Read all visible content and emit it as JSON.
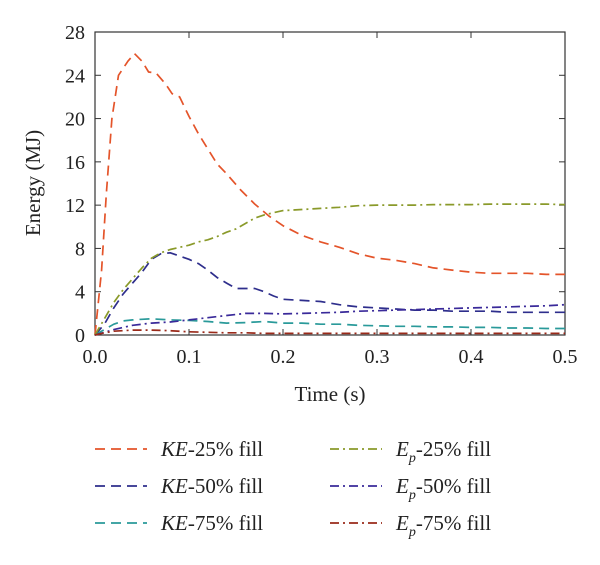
{
  "chart_data": {
    "type": "line",
    "title": "",
    "xlabel": "Time (s)",
    "ylabel": "Energy (MJ)",
    "xlim": [
      0.0,
      0.5
    ],
    "ylim": [
      0,
      28
    ],
    "x_ticks": [
      "0.0",
      "0.1",
      "0.2",
      "0.3",
      "0.4",
      "0.5"
    ],
    "y_ticks": [
      "0",
      "4",
      "8",
      "12",
      "16",
      "20",
      "24",
      "28"
    ],
    "grid": false,
    "legend_position": "bottom",
    "series": [
      {
        "name": "KE-25% fill",
        "legend_italic": "KE",
        "legend_rest": "-25% fill",
        "color": "#E4542A",
        "style": "dash",
        "points": [
          [
            0,
            0
          ],
          [
            0.007,
            6
          ],
          [
            0.012,
            13
          ],
          [
            0.018,
            20
          ],
          [
            0.025,
            24
          ],
          [
            0.035,
            25.3
          ],
          [
            0.042,
            26
          ],
          [
            0.05,
            25.3
          ],
          [
            0.057,
            24.3
          ],
          [
            0.065,
            24.2
          ],
          [
            0.075,
            23.2
          ],
          [
            0.082,
            22.3
          ],
          [
            0.09,
            22
          ],
          [
            0.1,
            20.2
          ],
          [
            0.11,
            18.6
          ],
          [
            0.12,
            17.2
          ],
          [
            0.13,
            15.8
          ],
          [
            0.14,
            14.9
          ],
          [
            0.155,
            13.4
          ],
          [
            0.17,
            12.1
          ],
          [
            0.185,
            11
          ],
          [
            0.2,
            10.1
          ],
          [
            0.22,
            9.2
          ],
          [
            0.24,
            8.6
          ],
          [
            0.26,
            8.1
          ],
          [
            0.28,
            7.5
          ],
          [
            0.3,
            7.1
          ],
          [
            0.32,
            6.9
          ],
          [
            0.34,
            6.6
          ],
          [
            0.36,
            6.2
          ],
          [
            0.38,
            6.0
          ],
          [
            0.4,
            5.8
          ],
          [
            0.42,
            5.7
          ],
          [
            0.44,
            5.7
          ],
          [
            0.46,
            5.7
          ],
          [
            0.48,
            5.6
          ],
          [
            0.5,
            5.6
          ]
        ]
      },
      {
        "name": "KE-50% fill",
        "legend_italic": "KE",
        "legend_rest": "-50% fill",
        "color": "#2E2E8C",
        "style": "dash",
        "points": [
          [
            0,
            0
          ],
          [
            0.01,
            1.0
          ],
          [
            0.02,
            2.5
          ],
          [
            0.03,
            3.8
          ],
          [
            0.04,
            4.8
          ],
          [
            0.05,
            5.8
          ],
          [
            0.06,
            7.0
          ],
          [
            0.07,
            7.5
          ],
          [
            0.08,
            7.6
          ],
          [
            0.09,
            7.3
          ],
          [
            0.1,
            7.0
          ],
          [
            0.11,
            6.6
          ],
          [
            0.12,
            6.0
          ],
          [
            0.13,
            5.3
          ],
          [
            0.14,
            4.8
          ],
          [
            0.15,
            4.3
          ],
          [
            0.16,
            4.3
          ],
          [
            0.17,
            4.3
          ],
          [
            0.18,
            4.0
          ],
          [
            0.19,
            3.6
          ],
          [
            0.2,
            3.3
          ],
          [
            0.22,
            3.2
          ],
          [
            0.24,
            3.1
          ],
          [
            0.26,
            2.8
          ],
          [
            0.28,
            2.6
          ],
          [
            0.3,
            2.5
          ],
          [
            0.32,
            2.4
          ],
          [
            0.34,
            2.3
          ],
          [
            0.36,
            2.3
          ],
          [
            0.38,
            2.2
          ],
          [
            0.4,
            2.2
          ],
          [
            0.42,
            2.2
          ],
          [
            0.44,
            2.1
          ],
          [
            0.46,
            2.1
          ],
          [
            0.48,
            2.1
          ],
          [
            0.5,
            2.1
          ]
        ]
      },
      {
        "name": "KE-75% fill",
        "legend_italic": "KE",
        "legend_rest": "-75% fill",
        "color": "#2A9A9A",
        "style": "dash",
        "points": [
          [
            0,
            0
          ],
          [
            0.01,
            0.5
          ],
          [
            0.02,
            1.0
          ],
          [
            0.03,
            1.3
          ],
          [
            0.04,
            1.4
          ],
          [
            0.05,
            1.45
          ],
          [
            0.06,
            1.5
          ],
          [
            0.08,
            1.4
          ],
          [
            0.1,
            1.35
          ],
          [
            0.12,
            1.25
          ],
          [
            0.14,
            1.1
          ],
          [
            0.16,
            1.15
          ],
          [
            0.18,
            1.25
          ],
          [
            0.2,
            1.1
          ],
          [
            0.22,
            1.1
          ],
          [
            0.24,
            1.0
          ],
          [
            0.26,
            1.0
          ],
          [
            0.28,
            0.9
          ],
          [
            0.3,
            0.85
          ],
          [
            0.32,
            0.8
          ],
          [
            0.34,
            0.8
          ],
          [
            0.36,
            0.75
          ],
          [
            0.38,
            0.75
          ],
          [
            0.4,
            0.7
          ],
          [
            0.42,
            0.7
          ],
          [
            0.44,
            0.65
          ],
          [
            0.46,
            0.65
          ],
          [
            0.48,
            0.6
          ],
          [
            0.5,
            0.6
          ]
        ]
      },
      {
        "name": "Ep-25% fill",
        "legend_italic": "E",
        "legend_sub": "p",
        "legend_rest": "-25% fill",
        "color": "#8A9A2A",
        "style": "dashdot",
        "points": [
          [
            0,
            0
          ],
          [
            0.01,
            1.5
          ],
          [
            0.02,
            3.0
          ],
          [
            0.03,
            4.2
          ],
          [
            0.04,
            5.2
          ],
          [
            0.05,
            6.2
          ],
          [
            0.06,
            7.1
          ],
          [
            0.07,
            7.6
          ],
          [
            0.08,
            7.9
          ],
          [
            0.09,
            8.1
          ],
          [
            0.1,
            8.3
          ],
          [
            0.11,
            8.6
          ],
          [
            0.12,
            8.8
          ],
          [
            0.13,
            9.1
          ],
          [
            0.14,
            9.5
          ],
          [
            0.15,
            9.8
          ],
          [
            0.16,
            10.3
          ],
          [
            0.17,
            10.8
          ],
          [
            0.18,
            11.1
          ],
          [
            0.19,
            11.3
          ],
          [
            0.2,
            11.5
          ],
          [
            0.22,
            11.6
          ],
          [
            0.24,
            11.7
          ],
          [
            0.26,
            11.8
          ],
          [
            0.28,
            11.95
          ],
          [
            0.3,
            12.0
          ],
          [
            0.32,
            12.0
          ],
          [
            0.34,
            12.0
          ],
          [
            0.36,
            12.05
          ],
          [
            0.38,
            12.05
          ],
          [
            0.4,
            12.05
          ],
          [
            0.42,
            12.1
          ],
          [
            0.44,
            12.1
          ],
          [
            0.46,
            12.1
          ],
          [
            0.48,
            12.1
          ],
          [
            0.5,
            12.05
          ]
        ]
      },
      {
        "name": "Ep-50% fill",
        "legend_italic": "E",
        "legend_sub": "p",
        "legend_rest": "-50% fill",
        "color": "#3A2A9A",
        "style": "dashdot",
        "points": [
          [
            0,
            0
          ],
          [
            0.02,
            0.5
          ],
          [
            0.04,
            0.9
          ],
          [
            0.06,
            1.1
          ],
          [
            0.08,
            1.2
          ],
          [
            0.1,
            1.4
          ],
          [
            0.12,
            1.6
          ],
          [
            0.14,
            1.8
          ],
          [
            0.16,
            2.0
          ],
          [
            0.18,
            2.0
          ],
          [
            0.2,
            1.95
          ],
          [
            0.22,
            2.0
          ],
          [
            0.24,
            2.05
          ],
          [
            0.26,
            2.1
          ],
          [
            0.28,
            2.2
          ],
          [
            0.3,
            2.25
          ],
          [
            0.32,
            2.3
          ],
          [
            0.34,
            2.35
          ],
          [
            0.36,
            2.4
          ],
          [
            0.38,
            2.45
          ],
          [
            0.4,
            2.5
          ],
          [
            0.42,
            2.55
          ],
          [
            0.44,
            2.6
          ],
          [
            0.46,
            2.65
          ],
          [
            0.48,
            2.7
          ],
          [
            0.5,
            2.8
          ]
        ]
      },
      {
        "name": "Ep-75% fill",
        "legend_italic": "E",
        "legend_sub": "p",
        "legend_rest": "-75% fill",
        "color": "#9A2A1A",
        "style": "dashdot",
        "points": [
          [
            0,
            0
          ],
          [
            0.01,
            0.2
          ],
          [
            0.02,
            0.35
          ],
          [
            0.04,
            0.45
          ],
          [
            0.06,
            0.45
          ],
          [
            0.08,
            0.4
          ],
          [
            0.1,
            0.3
          ],
          [
            0.12,
            0.25
          ],
          [
            0.14,
            0.2
          ],
          [
            0.16,
            0.2
          ],
          [
            0.18,
            0.15
          ],
          [
            0.2,
            0.15
          ],
          [
            0.25,
            0.15
          ],
          [
            0.3,
            0.15
          ],
          [
            0.35,
            0.15
          ],
          [
            0.4,
            0.15
          ],
          [
            0.45,
            0.15
          ],
          [
            0.5,
            0.15
          ]
        ]
      }
    ]
  }
}
